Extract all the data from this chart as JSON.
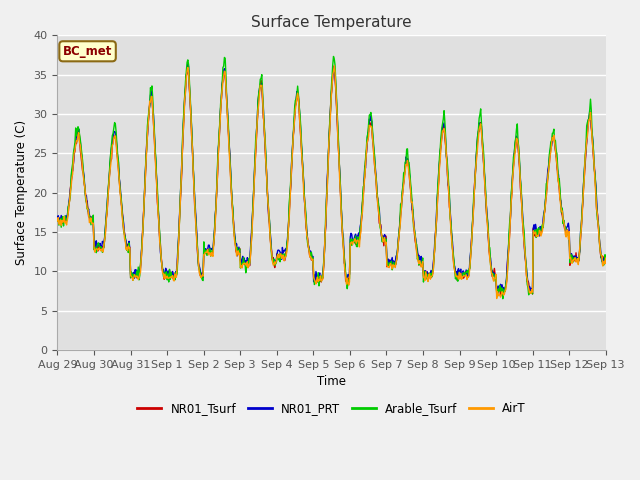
{
  "title": "Surface Temperature",
  "ylabel": "Surface Temperature (C)",
  "xlabel": "Time",
  "annotation": "BC_met",
  "ylim": [
    0,
    40
  ],
  "yticks": [
    0,
    5,
    10,
    15,
    20,
    25,
    30,
    35,
    40
  ],
  "series_colors": {
    "NR01_Tsurf": "#cc0000",
    "NR01_PRT": "#0000cc",
    "Arable_Tsurf": "#00cc00",
    "AirT": "#ff9900"
  },
  "legend_labels": [
    "NR01_Tsurf",
    "NR01_PRT",
    "Arable_Tsurf",
    "AirT"
  ],
  "xtick_labels": [
    "Aug 29",
    "Aug 30",
    "Aug 31",
    "Sep 1",
    "Sep 2",
    "Sep 3",
    "Sep 4",
    "Sep 5",
    "Sep 6",
    "Sep 7",
    "Sep 8",
    "Sep 9",
    "Sep 10",
    "Sep 11",
    "Sep 12",
    "Sep 13"
  ],
  "background_color": "#e8e8e8",
  "plot_bg_color": "#e0e0e0",
  "linewidth": 1.0,
  "figsize": [
    6.4,
    4.8
  ],
  "dpi": 100
}
